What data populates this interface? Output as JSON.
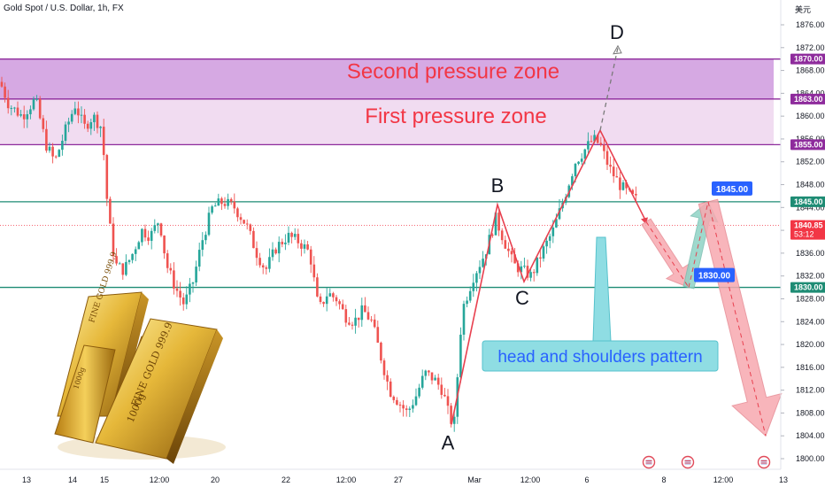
{
  "header": {
    "symbol_line": "Gold Spot / U.S. Dollar, 1h, FX",
    "currency_unit": "美元"
  },
  "colors": {
    "up": "#26a69a",
    "down": "#ef5350",
    "zone_upper": "#cf9ade",
    "zone_lower": "#efd8f0",
    "zone_border": "#8e2b9c",
    "level_line": "#1e8c74",
    "pattern_line": "#e8404f",
    "annotation_text": "#f23645",
    "label_blue": "#2962ff",
    "price_tag": "#f23645",
    "callout_bg": "#8fdde3",
    "arrow_red": "#f7a9b0",
    "arrow_teal": "#8fd3c5"
  },
  "chart_data": {
    "type": "candlestick",
    "title": "Gold Spot / U.S. Dollar, 1h, FX",
    "ylim": [
      1798,
      1880
    ],
    "y_ticks": [
      1800,
      1804,
      1808,
      1812,
      1816,
      1820,
      1824,
      1828,
      1832,
      1836,
      1840,
      1844,
      1848,
      1852,
      1856,
      1860,
      1864,
      1868,
      1872,
      1876
    ],
    "x_ticks": [
      "13",
      "14",
      "15",
      "12:00",
      "20",
      "22",
      "12:00",
      "27",
      "Mar",
      "12:00",
      "6",
      "8",
      "12:00",
      "13"
    ],
    "price_series": {
      "name": "Gold Spot",
      "knots": [
        [
          0,
          1866
        ],
        [
          10,
          1862
        ],
        [
          25,
          1860
        ],
        [
          40,
          1863
        ],
        [
          52,
          1855
        ],
        [
          62,
          1852
        ],
        [
          75,
          1858
        ],
        [
          85,
          1862
        ],
        [
          95,
          1858
        ],
        [
          105,
          1860
        ],
        [
          115,
          1858
        ],
        [
          122,
          1843
        ],
        [
          130,
          1834
        ],
        [
          140,
          1833
        ],
        [
          150,
          1836
        ],
        [
          160,
          1840
        ],
        [
          170,
          1839
        ],
        [
          180,
          1842
        ],
        [
          188,
          1834
        ],
        [
          198,
          1830
        ],
        [
          208,
          1827
        ],
        [
          218,
          1831
        ],
        [
          228,
          1838
        ],
        [
          240,
          1844
        ],
        [
          252,
          1845
        ],
        [
          265,
          1844
        ],
        [
          278,
          1841
        ],
        [
          290,
          1836
        ],
        [
          300,
          1833
        ],
        [
          312,
          1837
        ],
        [
          325,
          1839
        ],
        [
          338,
          1838
        ],
        [
          350,
          1836
        ],
        [
          360,
          1826
        ],
        [
          370,
          1829
        ],
        [
          380,
          1828
        ],
        [
          390,
          1825
        ],
        [
          400,
          1824
        ],
        [
          410,
          1826
        ],
        [
          420,
          1824
        ],
        [
          430,
          1818
        ],
        [
          440,
          1812
        ],
        [
          450,
          1810
        ],
        [
          460,
          1808
        ],
        [
          470,
          1811
        ],
        [
          480,
          1815
        ],
        [
          490,
          1814
        ],
        [
          500,
          1812
        ],
        [
          508,
          1807
        ],
        [
          513,
          1806
        ],
        [
          522,
          1826
        ],
        [
          535,
          1832
        ],
        [
          548,
          1836
        ],
        [
          560,
          1842
        ],
        [
          570,
          1838
        ],
        [
          580,
          1834
        ],
        [
          590,
          1833
        ],
        [
          600,
          1832
        ],
        [
          612,
          1836
        ],
        [
          625,
          1840
        ],
        [
          638,
          1846
        ],
        [
          650,
          1852
        ],
        [
          660,
          1854
        ],
        [
          670,
          1856
        ],
        [
          678,
          1855
        ],
        [
          688,
          1851
        ],
        [
          700,
          1848
        ],
        [
          712,
          1846
        ],
        [
          722,
          1845
        ]
      ]
    },
    "zones": [
      {
        "label": "Second pressure zone",
        "from": 1863.0,
        "to": 1870.0
      },
      {
        "label": "First pressure zone",
        "from": 1855.0,
        "to": 1863.0
      }
    ],
    "levels": [
      {
        "price": 1845.0,
        "tag": "1845.00"
      },
      {
        "price": 1830.0,
        "tag": "1830.00"
      }
    ],
    "zone_tags": [
      "1870.00",
      "1863.00",
      "1855.00"
    ],
    "current_price": {
      "price": 1840.85,
      "tag": "1840.85",
      "countdown": "53:12"
    },
    "pattern_points": [
      {
        "label": "A",
        "x": 510,
        "price": 1806.0
      },
      {
        "label": "B",
        "x": 562,
        "price": 1844.5
      },
      {
        "label": "C",
        "x": 592,
        "price": 1831.0
      },
      {
        "label": "peak",
        "x": 678,
        "price": 1857.5
      },
      {
        "label": "end",
        "x": 730,
        "price": 1841.5
      }
    ],
    "projection_D": {
      "label": "D",
      "price": 1872.0
    },
    "forecast_path": [
      {
        "x": 730,
        "price": 1841.5
      },
      {
        "x": 778,
        "price": 1830.0,
        "label": "1830.00"
      },
      {
        "x": 800,
        "price": 1845.0,
        "label": "1845.00"
      },
      {
        "x": 865,
        "price": 1804.0
      }
    ],
    "annotations": {
      "zone2_text": "Second pressure zone",
      "zone1_text": "First pressure zone",
      "pattern_text": "head and shoulders pattern",
      "point_A": "A",
      "point_B": "B",
      "point_C": "C",
      "point_D": "D"
    },
    "event_icons": [
      "us-flag-event-icon",
      "us-flag-event-icon",
      "us-flag-event-icon"
    ]
  }
}
